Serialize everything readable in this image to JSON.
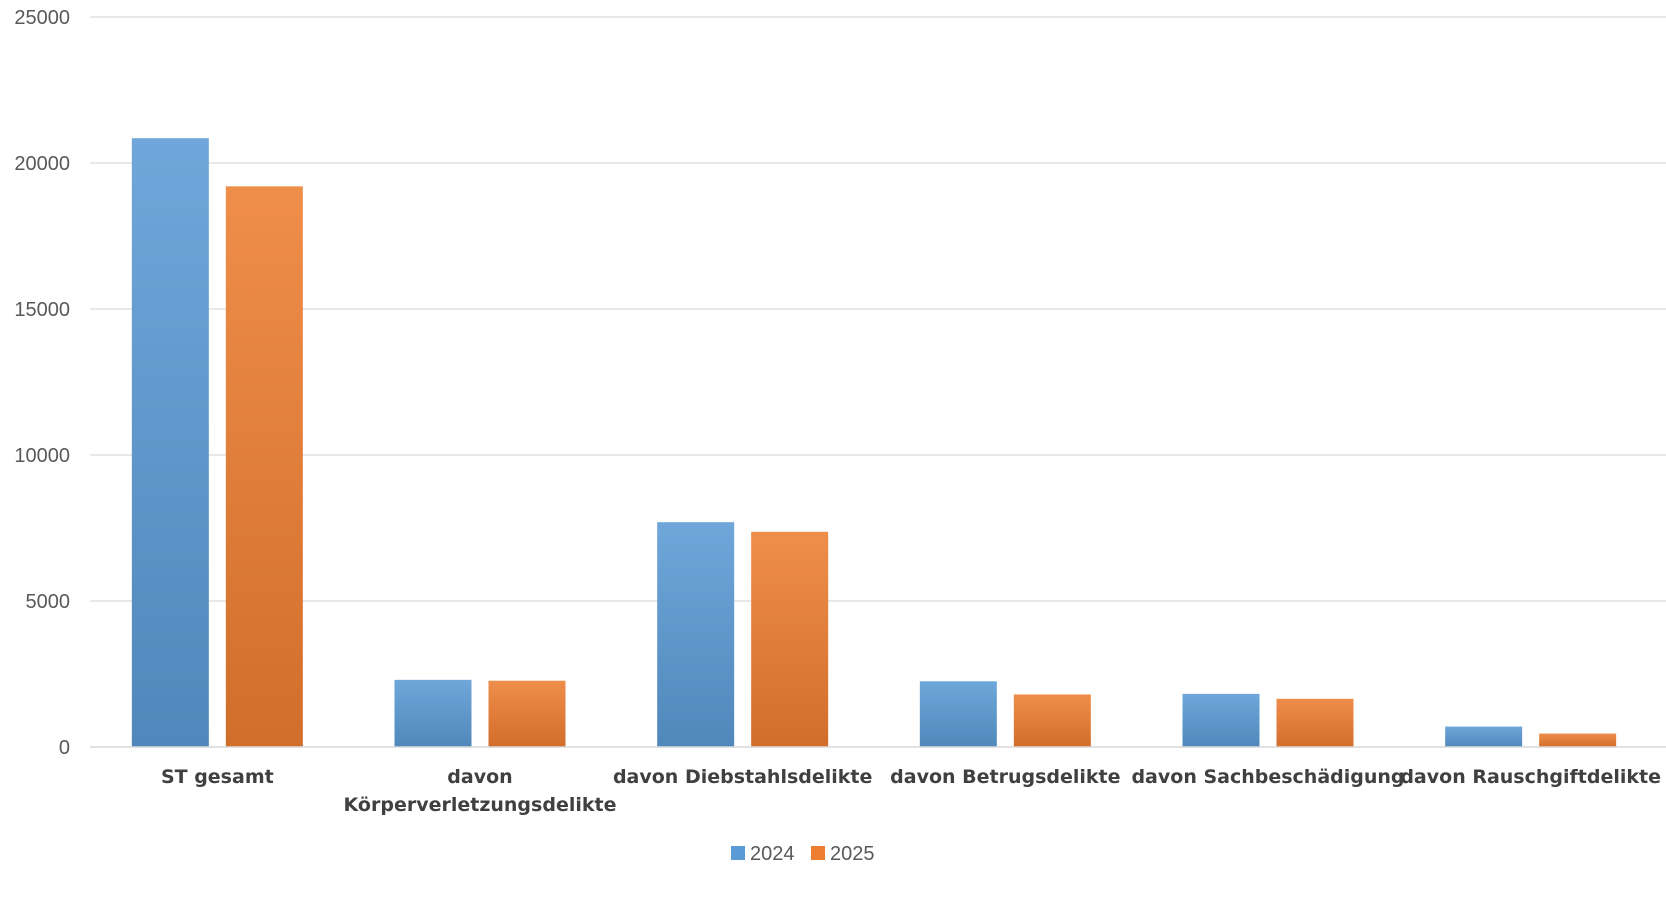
{
  "chart_data": {
    "type": "bar",
    "title": "",
    "xlabel": "",
    "ylabel": "",
    "ylim": [
      0,
      25000
    ],
    "yticks": [
      0,
      5000,
      10000,
      15000,
      20000,
      25000
    ],
    "grid": true,
    "legend_position": "bottom",
    "categories": [
      [
        "ST gesamt"
      ],
      [
        "davon",
        "Körperverletzungsdelikte"
      ],
      [
        "davon Diebstahlsdelikte"
      ],
      [
        "davon Betrugsdelikte"
      ],
      [
        "davon Sachbeschädigung"
      ],
      [
        "davon Rauschgiftdelikte"
      ]
    ],
    "series": [
      {
        "name": "2024",
        "color": "#5B9BD5",
        "values": [
          20850,
          2300,
          7700,
          2250,
          1820,
          700
        ]
      },
      {
        "name": "2025",
        "color": "#ED7D31",
        "values": [
          19200,
          2270,
          7370,
          1800,
          1650,
          460
        ]
      }
    ]
  }
}
